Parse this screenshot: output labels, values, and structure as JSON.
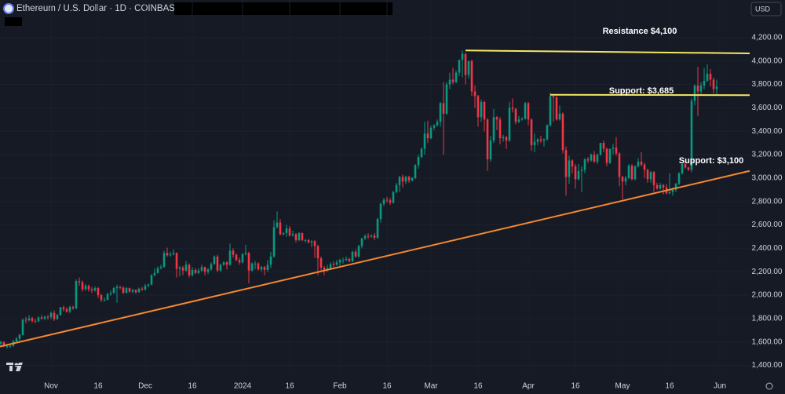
{
  "chart_data": {
    "type": "candlestick",
    "title": "Ethereum / U.S. Dollar · 1D · COINBASE",
    "currency": "USD",
    "up_color": "#089981",
    "down_color": "#f23645",
    "grid": true,
    "xlim": [
      -0.25,
      238.5
    ],
    "xticks": [
      {
        "value": 16,
        "label": "Nov"
      },
      {
        "value": 31,
        "label": "16"
      },
      {
        "value": 46,
        "label": "Dec"
      },
      {
        "value": 61,
        "label": "16"
      },
      {
        "value": 77,
        "label": "2024"
      },
      {
        "value": 92,
        "label": "16"
      },
      {
        "value": 108,
        "label": "Feb"
      },
      {
        "value": 123,
        "label": "16"
      },
      {
        "value": 137,
        "label": "Mar"
      },
      {
        "value": 152,
        "label": "16"
      },
      {
        "value": 168,
        "label": "Apr"
      },
      {
        "value": 183,
        "label": "16"
      },
      {
        "value": 198,
        "label": "May"
      },
      {
        "value": 213,
        "label": "16"
      },
      {
        "value": 229,
        "label": "Jun"
      }
    ],
    "ylim": [
      1330,
      4390
    ],
    "yticks": [
      {
        "value": 1400,
        "label": "1,400.00"
      },
      {
        "value": 1600,
        "label": "1,600.00"
      },
      {
        "value": 1800,
        "label": "1,800.00"
      },
      {
        "value": 2000,
        "label": "2,000.00"
      },
      {
        "value": 2200,
        "label": "2,200.00"
      },
      {
        "value": 2400,
        "label": "2,400.00"
      },
      {
        "value": 2600,
        "label": "2,600.00"
      },
      {
        "value": 2800,
        "label": "2,800.00"
      },
      {
        "value": 3000,
        "label": "3,000.00"
      },
      {
        "value": 3200,
        "label": "3,200.00"
      },
      {
        "value": 3400,
        "label": "3,400.00"
      },
      {
        "value": 3600,
        "label": "3,600.00"
      },
      {
        "value": 3800,
        "label": "3,800.00"
      },
      {
        "value": 4000,
        "label": "4,000.00"
      },
      {
        "value": 4200,
        "label": "4,200.00"
      }
    ],
    "lines": [
      {
        "label": "Resistance $4,100",
        "color": "#f5e663",
        "x": [
          148,
          238.5
        ],
        "y": [
          4090,
          4065
        ]
      },
      {
        "label": "Support: $3,685",
        "color": "#f5e663",
        "x": [
          175,
          238.5
        ],
        "y": [
          3711,
          3708
        ]
      },
      {
        "label": "Support: $3,100",
        "color": "#f7882f",
        "x": [
          -0.25,
          238.5
        ],
        "y": [
          1561,
          3061
        ]
      }
    ],
    "ohlc": [
      [
        1585,
        1610,
        1565,
        1600
      ],
      [
        1600,
        1605,
        1555,
        1565
      ],
      [
        1565,
        1585,
        1545,
        1565
      ],
      [
        1565,
        1580,
        1550,
        1567
      ],
      [
        1567,
        1620,
        1560,
        1605
      ],
      [
        1605,
        1640,
        1595,
        1629
      ],
      [
        1629,
        1670,
        1610,
        1660
      ],
      [
        1660,
        1800,
        1655,
        1790
      ],
      [
        1790,
        1815,
        1760,
        1786
      ],
      [
        1786,
        1830,
        1775,
        1803
      ],
      [
        1803,
        1815,
        1765,
        1780
      ],
      [
        1780,
        1800,
        1760,
        1776
      ],
      [
        1776,
        1820,
        1770,
        1810
      ],
      [
        1810,
        1830,
        1790,
        1800
      ],
      [
        1800,
        1825,
        1785,
        1815
      ],
      [
        1815,
        1830,
        1790,
        1812
      ],
      [
        1812,
        1860,
        1795,
        1848
      ],
      [
        1848,
        1870,
        1780,
        1795
      ],
      [
        1795,
        1840,
        1790,
        1830
      ],
      [
        1830,
        1900,
        1825,
        1895
      ],
      [
        1895,
        1910,
        1860,
        1880
      ],
      [
        1880,
        1895,
        1850,
        1860
      ],
      [
        1860,
        1910,
        1845,
        1900
      ],
      [
        1900,
        1910,
        1875,
        1888
      ],
      [
        1888,
        2135,
        1880,
        2120
      ],
      [
        2120,
        2150,
        2080,
        2110
      ],
      [
        2110,
        2125,
        2030,
        2050
      ],
      [
        2050,
        2095,
        2040,
        2080
      ],
      [
        2080,
        2090,
        2030,
        2050
      ],
      [
        2050,
        2070,
        2020,
        2040
      ],
      [
        2040,
        2075,
        2030,
        2060
      ],
      [
        2060,
        2070,
        1975,
        2000
      ],
      [
        2000,
        2010,
        1940,
        1960
      ],
      [
        1960,
        1980,
        1945,
        1960
      ],
      [
        1960,
        2020,
        1955,
        2010
      ],
      [
        2010,
        2040,
        1995,
        2020
      ],
      [
        2020,
        2070,
        2010,
        2060
      ],
      [
        2060,
        2090,
        1935,
        2070
      ],
      [
        2070,
        2080,
        2050,
        2065
      ],
      [
        2065,
        2075,
        2010,
        2020
      ],
      [
        2020,
        2070,
        2015,
        2060
      ],
      [
        2060,
        2065,
        2020,
        2030
      ],
      [
        2030,
        2055,
        2015,
        2045
      ],
      [
        2045,
        2050,
        2010,
        2025
      ],
      [
        2025,
        2065,
        2020,
        2055
      ],
      [
        2055,
        2070,
        2035,
        2048
      ],
      [
        2048,
        2095,
        2040,
        2080
      ],
      [
        2080,
        2100,
        2070,
        2090
      ],
      [
        2090,
        2180,
        2085,
        2170
      ],
      [
        2170,
        2230,
        2160,
        2190
      ],
      [
        2190,
        2245,
        2185,
        2230
      ],
      [
        2230,
        2260,
        2220,
        2240
      ],
      [
        2240,
        2380,
        2235,
        2360
      ],
      [
        2360,
        2405,
        2330,
        2340
      ],
      [
        2340,
        2370,
        2330,
        2350
      ],
      [
        2350,
        2390,
        2340,
        2360
      ],
      [
        2360,
        2365,
        2150,
        2225
      ],
      [
        2225,
        2250,
        2160,
        2235
      ],
      [
        2235,
        2250,
        2170,
        2210
      ],
      [
        2210,
        2290,
        2200,
        2260
      ],
      [
        2260,
        2270,
        2150,
        2170
      ],
      [
        2170,
        2240,
        2160,
        2215
      ],
      [
        2215,
        2230,
        2180,
        2190
      ],
      [
        2190,
        2230,
        2180,
        2210
      ],
      [
        2210,
        2260,
        2200,
        2240
      ],
      [
        2240,
        2245,
        2170,
        2200
      ],
      [
        2200,
        2230,
        2180,
        2220
      ],
      [
        2220,
        2280,
        2210,
        2265
      ],
      [
        2265,
        2340,
        2260,
        2330
      ],
      [
        2330,
        2345,
        2200,
        2210
      ],
      [
        2210,
        2270,
        2200,
        2260
      ],
      [
        2260,
        2290,
        2250,
        2280
      ],
      [
        2280,
        2290,
        2220,
        2260
      ],
      [
        2260,
        2440,
        2250,
        2380
      ],
      [
        2380,
        2400,
        2320,
        2345
      ],
      [
        2345,
        2355,
        2290,
        2300
      ],
      [
        2300,
        2320,
        2260,
        2280
      ],
      [
        2280,
        2360,
        2270,
        2350
      ],
      [
        2350,
        2430,
        2340,
        2360
      ],
      [
        2360,
        2370,
        2100,
        2210
      ],
      [
        2210,
        2280,
        2200,
        2270
      ],
      [
        2270,
        2290,
        2220,
        2270
      ],
      [
        2270,
        2280,
        2210,
        2220
      ],
      [
        2220,
        2250,
        2200,
        2240
      ],
      [
        2240,
        2250,
        2170,
        2215
      ],
      [
        2215,
        2300,
        2200,
        2260
      ],
      [
        2260,
        2370,
        2230,
        2330
      ],
      [
        2330,
        2640,
        2320,
        2580
      ],
      [
        2580,
        2715,
        2570,
        2620
      ],
      [
        2620,
        2650,
        2510,
        2520
      ],
      [
        2520,
        2540,
        2510,
        2530
      ],
      [
        2530,
        2600,
        2500,
        2570
      ],
      [
        2570,
        2590,
        2500,
        2510
      ],
      [
        2510,
        2550,
        2500,
        2520
      ],
      [
        2520,
        2530,
        2450,
        2470
      ],
      [
        2470,
        2540,
        2460,
        2530
      ],
      [
        2530,
        2535,
        2460,
        2470
      ],
      [
        2470,
        2480,
        2450,
        2470
      ],
      [
        2470,
        2480,
        2440,
        2450
      ],
      [
        2450,
        2470,
        2410,
        2460
      ],
      [
        2460,
        2470,
        2320,
        2420
      ],
      [
        2420,
        2430,
        2170,
        2315
      ],
      [
        2315,
        2330,
        2200,
        2235
      ],
      [
        2235,
        2250,
        2170,
        2210
      ],
      [
        2210,
        2260,
        2200,
        2230
      ],
      [
        2230,
        2280,
        2215,
        2265
      ],
      [
        2265,
        2290,
        2240,
        2260
      ],
      [
        2260,
        2300,
        2250,
        2280
      ],
      [
        2280,
        2310,
        2250,
        2300
      ],
      [
        2300,
        2320,
        2270,
        2300
      ],
      [
        2300,
        2330,
        2290,
        2310
      ],
      [
        2310,
        2320,
        2280,
        2290
      ],
      [
        2290,
        2380,
        2280,
        2370
      ],
      [
        2370,
        2390,
        2320,
        2330
      ],
      [
        2330,
        2430,
        2320,
        2420
      ],
      [
        2420,
        2490,
        2400,
        2485
      ],
      [
        2485,
        2520,
        2470,
        2505
      ],
      [
        2505,
        2530,
        2480,
        2500
      ],
      [
        2500,
        2520,
        2490,
        2510
      ],
      [
        2510,
        2530,
        2470,
        2490
      ],
      [
        2490,
        2660,
        2480,
        2650
      ],
      [
        2650,
        2790,
        2620,
        2780
      ],
      [
        2780,
        2830,
        2760,
        2815
      ],
      [
        2815,
        2840,
        2790,
        2810
      ],
      [
        2810,
        2830,
        2770,
        2790
      ],
      [
        2790,
        2890,
        2780,
        2880
      ],
      [
        2880,
        2960,
        2870,
        2940
      ],
      [
        2940,
        3020,
        2880,
        3010
      ],
      [
        3010,
        3030,
        2920,
        2970
      ],
      [
        2970,
        3020,
        2950,
        3010
      ],
      [
        3010,
        3020,
        2960,
        2980
      ],
      [
        2980,
        3010,
        2970,
        3000
      ],
      [
        3000,
        3120,
        2990,
        3110
      ],
      [
        3110,
        3200,
        3080,
        3180
      ],
      [
        3180,
        3260,
        3170,
        3250
      ],
      [
        3250,
        3480,
        3200,
        3380
      ],
      [
        3380,
        3490,
        3300,
        3340
      ],
      [
        3340,
        3450,
        3330,
        3430
      ],
      [
        3430,
        3460,
        3410,
        3450
      ],
      [
        3450,
        3500,
        3440,
        3480
      ],
      [
        3480,
        3650,
        3440,
        3640
      ],
      [
        3640,
        3820,
        3200,
        3550
      ],
      [
        3550,
        3820,
        3540,
        3800
      ],
      [
        3800,
        3900,
        3760,
        3840
      ],
      [
        3840,
        3940,
        3800,
        3820
      ],
      [
        3820,
        3920,
        3810,
        3900
      ],
      [
        3900,
        4010,
        3870,
        4010
      ],
      [
        4010,
        4090,
        3860,
        4060
      ],
      [
        4060,
        4070,
        3800,
        3880
      ],
      [
        3880,
        4000,
        3850,
        4000
      ],
      [
        4000,
        4010,
        3700,
        3740
      ],
      [
        3740,
        3790,
        3600,
        3700
      ],
      [
        3700,
        3710,
        3440,
        3520
      ],
      [
        3520,
        3670,
        3480,
        3650
      ],
      [
        3650,
        3660,
        3400,
        3500
      ],
      [
        3500,
        3510,
        3060,
        3160
      ],
      [
        3160,
        3360,
        3140,
        3320
      ],
      [
        3320,
        3590,
        3300,
        3520
      ],
      [
        3520,
        3530,
        3410,
        3500
      ],
      [
        3500,
        3520,
        3290,
        3340
      ],
      [
        3340,
        3370,
        3310,
        3350
      ],
      [
        3350,
        3360,
        3250,
        3320
      ],
      [
        3320,
        3650,
        3310,
        3600
      ],
      [
        3600,
        3680,
        3560,
        3590
      ],
      [
        3590,
        3600,
        3460,
        3480
      ],
      [
        3480,
        3530,
        3470,
        3500
      ],
      [
        3500,
        3520,
        3490,
        3505
      ],
      [
        3505,
        3650,
        3500,
        3640
      ],
      [
        3640,
        3650,
        3450,
        3500
      ],
      [
        3500,
        3510,
        3230,
        3280
      ],
      [
        3280,
        3380,
        3220,
        3310
      ],
      [
        3310,
        3340,
        3280,
        3330
      ],
      [
        3330,
        3360,
        3300,
        3320
      ],
      [
        3320,
        3340,
        3270,
        3330
      ],
      [
        3330,
        3460,
        3320,
        3450
      ],
      [
        3450,
        3730,
        3440,
        3700
      ],
      [
        3700,
        3710,
        3480,
        3690
      ],
      [
        3690,
        3700,
        3490,
        3500
      ],
      [
        3500,
        3620,
        3490,
        3550
      ],
      [
        3550,
        3560,
        3210,
        3240
      ],
      [
        3240,
        3270,
        2850,
        3010
      ],
      [
        3010,
        3190,
        2950,
        3150
      ],
      [
        3150,
        3160,
        3040,
        3100
      ],
      [
        3100,
        3120,
        2910,
        2990
      ],
      [
        2990,
        3120,
        2980,
        3060
      ],
      [
        3060,
        3100,
        2880,
        3070
      ],
      [
        3070,
        3170,
        3040,
        3160
      ],
      [
        3160,
        3180,
        3130,
        3150
      ],
      [
        3150,
        3210,
        3140,
        3200
      ],
      [
        3200,
        3230,
        3130,
        3140
      ],
      [
        3140,
        3210,
        3120,
        3200
      ],
      [
        3200,
        3300,
        3190,
        3300
      ],
      [
        3300,
        3320,
        3220,
        3250
      ],
      [
        3250,
        3260,
        3100,
        3130
      ],
      [
        3130,
        3250,
        3120,
        3250
      ],
      [
        3250,
        3290,
        3200,
        3260
      ],
      [
        3260,
        3350,
        3190,
        3210
      ],
      [
        3210,
        3220,
        2930,
        3010
      ],
      [
        3010,
        3020,
        2820,
        2970
      ],
      [
        2970,
        3020,
        2940,
        3000
      ],
      [
        3000,
        3120,
        2990,
        3105
      ],
      [
        3105,
        3120,
        2980,
        2990
      ],
      [
        2990,
        3110,
        2980,
        3100
      ],
      [
        3100,
        3170,
        3090,
        3140
      ],
      [
        3140,
        3220,
        3100,
        3115
      ],
      [
        3115,
        3130,
        3000,
        3070
      ],
      [
        3070,
        3080,
        2960,
        2990
      ],
      [
        2990,
        3060,
        2960,
        3050
      ],
      [
        3050,
        3060,
        2880,
        2940
      ],
      [
        2940,
        2960,
        2900,
        2910
      ],
      [
        2910,
        2960,
        2900,
        2940
      ],
      [
        2940,
        2950,
        2860,
        2920
      ],
      [
        2920,
        2950,
        2860,
        2870
      ],
      [
        2870,
        3040,
        2860,
        2880
      ],
      [
        2880,
        2920,
        2850,
        2900
      ],
      [
        2900,
        2960,
        2880,
        2950
      ],
      [
        2950,
        3050,
        2940,
        3040
      ],
      [
        3040,
        3130,
        3030,
        3120
      ],
      [
        3120,
        3140,
        3080,
        3090
      ],
      [
        3090,
        3100,
        3060,
        3070
      ],
      [
        3070,
        3680,
        3050,
        3660
      ],
      [
        3660,
        3800,
        3620,
        3790
      ],
      [
        3790,
        3950,
        3530,
        3740
      ],
      [
        3740,
        3820,
        3710,
        3790
      ],
      [
        3790,
        3940,
        3760,
        3830
      ],
      [
        3830,
        3970,
        3820,
        3890
      ],
      [
        3890,
        3930,
        3780,
        3840
      ],
      [
        3840,
        3860,
        3720,
        3760
      ],
      [
        3760,
        3840,
        3710,
        3780
      ]
    ]
  }
}
